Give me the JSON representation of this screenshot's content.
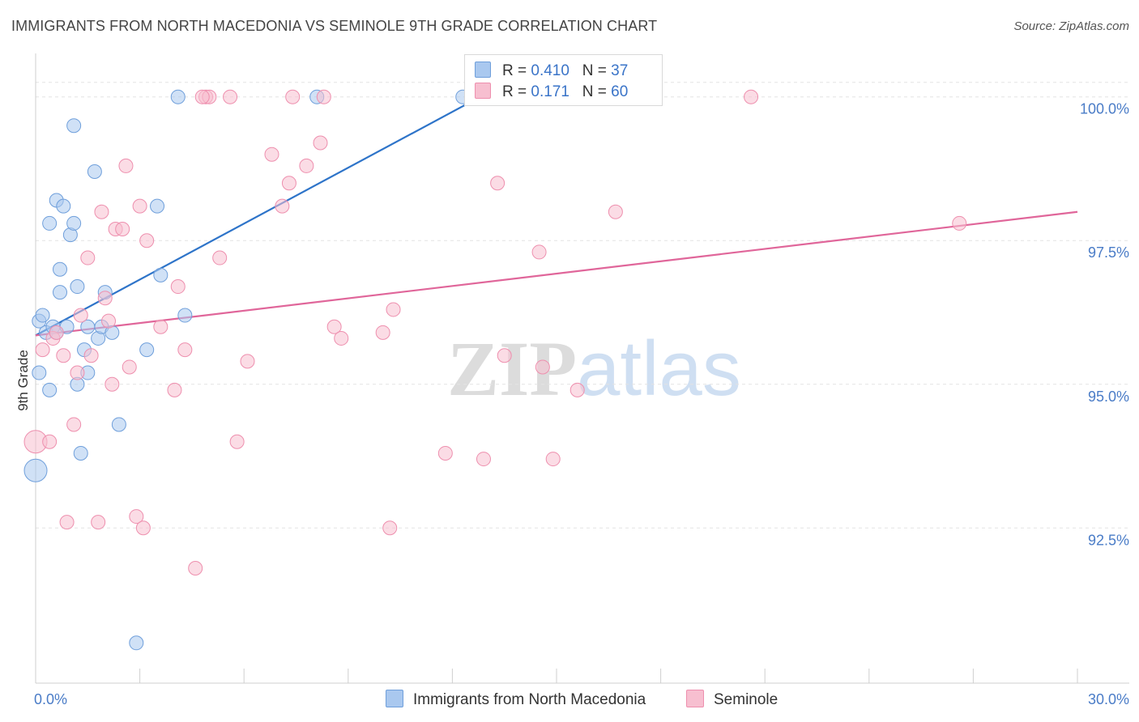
{
  "title": "IMMIGRANTS FROM NORTH MACEDONIA VS SEMINOLE 9TH GRADE CORRELATION CHART",
  "source": "Source: ZipAtlas.com",
  "watermark": {
    "zip": "ZIP",
    "atlas": "atlas"
  },
  "legend": {
    "rows": [
      {
        "r_label": "R =",
        "r_value": "0.410",
        "n_label": "N =",
        "n_value": "37",
        "color": "#a9c8ef"
      },
      {
        "r_label": "R =",
        "r_value": "0.171",
        "n_label": "N =",
        "n_value": "60",
        "color": "#f7bfd0"
      }
    ]
  },
  "chart_data": {
    "type": "scatter",
    "title": "IMMIGRANTS FROM NORTH MACEDONIA VS SEMINOLE 9TH GRADE CORRELATION CHART",
    "xlabel": "",
    "ylabel": "9th Grade",
    "xlim": [
      0,
      30
    ],
    "ylim": [
      89.8,
      100.7
    ],
    "x_tick_labels": [
      "0.0%",
      "30.0%"
    ],
    "y_ticks": [
      92.5,
      95.0,
      97.5,
      100.0
    ],
    "y_tick_labels": [
      "92.5%",
      "95.0%",
      "97.5%",
      "100.0%"
    ],
    "grid": true,
    "series": [
      {
        "name": "Immigrants from North Macedonia",
        "color": "#a9c8ef",
        "edge": "#6f9fdb",
        "trend": {
          "x": [
            0.0,
            12.8
          ],
          "y": [
            95.85,
            100.0
          ],
          "color": "#2e74c9"
        },
        "points": [
          {
            "x": 0.0,
            "y": 93.5,
            "big": true
          },
          {
            "x": 0.1,
            "y": 95.2
          },
          {
            "x": 0.1,
            "y": 96.1
          },
          {
            "x": 0.2,
            "y": 96.2
          },
          {
            "x": 0.3,
            "y": 95.9
          },
          {
            "x": 0.4,
            "y": 94.9
          },
          {
            "x": 0.4,
            "y": 97.8
          },
          {
            "x": 0.5,
            "y": 96.0
          },
          {
            "x": 0.6,
            "y": 98.2
          },
          {
            "x": 0.6,
            "y": 95.9
          },
          {
            "x": 0.7,
            "y": 97.0
          },
          {
            "x": 0.7,
            "y": 96.6
          },
          {
            "x": 0.8,
            "y": 98.1
          },
          {
            "x": 0.9,
            "y": 96.0
          },
          {
            "x": 1.0,
            "y": 97.6
          },
          {
            "x": 1.1,
            "y": 97.8
          },
          {
            "x": 1.1,
            "y": 99.5
          },
          {
            "x": 1.2,
            "y": 96.7
          },
          {
            "x": 1.2,
            "y": 95.0
          },
          {
            "x": 1.3,
            "y": 93.8
          },
          {
            "x": 1.4,
            "y": 95.6
          },
          {
            "x": 1.5,
            "y": 96.0
          },
          {
            "x": 1.5,
            "y": 95.2
          },
          {
            "x": 1.7,
            "y": 98.7
          },
          {
            "x": 1.8,
            "y": 95.8
          },
          {
            "x": 1.9,
            "y": 96.0
          },
          {
            "x": 2.0,
            "y": 96.6
          },
          {
            "x": 2.2,
            "y": 95.9
          },
          {
            "x": 2.4,
            "y": 94.3
          },
          {
            "x": 2.9,
            "y": 90.5
          },
          {
            "x": 3.2,
            "y": 95.6
          },
          {
            "x": 3.5,
            "y": 98.1
          },
          {
            "x": 3.6,
            "y": 96.9
          },
          {
            "x": 4.1,
            "y": 100.0
          },
          {
            "x": 4.3,
            "y": 96.2
          },
          {
            "x": 8.1,
            "y": 100.0
          },
          {
            "x": 12.3,
            "y": 100.0
          }
        ]
      },
      {
        "name": "Seminole",
        "color": "#f7bfd0",
        "edge": "#ee8fae",
        "trend": {
          "x": [
            0.0,
            30.0
          ],
          "y": [
            95.85,
            98.0
          ],
          "color": "#e0669a"
        },
        "points": [
          {
            "x": 0.0,
            "y": 94.0,
            "big": true
          },
          {
            "x": 0.2,
            "y": 95.6
          },
          {
            "x": 0.4,
            "y": 94.0
          },
          {
            "x": 0.5,
            "y": 95.8
          },
          {
            "x": 0.6,
            "y": 95.9
          },
          {
            "x": 0.8,
            "y": 95.5
          },
          {
            "x": 0.9,
            "y": 92.6
          },
          {
            "x": 1.1,
            "y": 94.3
          },
          {
            "x": 1.2,
            "y": 95.2
          },
          {
            "x": 1.3,
            "y": 96.2
          },
          {
            "x": 1.5,
            "y": 97.2
          },
          {
            "x": 1.6,
            "y": 95.5
          },
          {
            "x": 1.8,
            "y": 92.6
          },
          {
            "x": 1.9,
            "y": 98.0
          },
          {
            "x": 2.0,
            "y": 96.5
          },
          {
            "x": 2.1,
            "y": 96.1
          },
          {
            "x": 2.2,
            "y": 95.0
          },
          {
            "x": 2.3,
            "y": 97.7
          },
          {
            "x": 2.5,
            "y": 97.7
          },
          {
            "x": 2.6,
            "y": 98.8
          },
          {
            "x": 2.7,
            "y": 95.3
          },
          {
            "x": 2.9,
            "y": 92.7
          },
          {
            "x": 3.0,
            "y": 98.1
          },
          {
            "x": 3.1,
            "y": 92.5
          },
          {
            "x": 3.2,
            "y": 97.5
          },
          {
            "x": 3.6,
            "y": 96.0
          },
          {
            "x": 4.0,
            "y": 94.9
          },
          {
            "x": 4.1,
            "y": 96.7
          },
          {
            "x": 4.3,
            "y": 95.6
          },
          {
            "x": 4.6,
            "y": 91.8
          },
          {
            "x": 4.9,
            "y": 100.0
          },
          {
            "x": 5.0,
            "y": 100.0
          },
          {
            "x": 5.3,
            "y": 97.2
          },
          {
            "x": 5.6,
            "y": 100.0
          },
          {
            "x": 5.8,
            "y": 94.0
          },
          {
            "x": 6.1,
            "y": 95.4
          },
          {
            "x": 6.8,
            "y": 99.0
          },
          {
            "x": 7.1,
            "y": 98.1
          },
          {
            "x": 7.3,
            "y": 98.5
          },
          {
            "x": 7.4,
            "y": 100.0
          },
          {
            "x": 7.8,
            "y": 98.8
          },
          {
            "x": 8.2,
            "y": 99.2
          },
          {
            "x": 8.3,
            "y": 100.0
          },
          {
            "x": 8.6,
            "y": 96.0
          },
          {
            "x": 8.8,
            "y": 95.8
          },
          {
            "x": 10.0,
            "y": 95.9
          },
          {
            "x": 10.2,
            "y": 92.5
          },
          {
            "x": 10.3,
            "y": 96.3
          },
          {
            "x": 11.8,
            "y": 93.8
          },
          {
            "x": 12.9,
            "y": 93.7
          },
          {
            "x": 13.3,
            "y": 98.5
          },
          {
            "x": 13.5,
            "y": 95.5
          },
          {
            "x": 14.5,
            "y": 97.3
          },
          {
            "x": 14.6,
            "y": 95.3
          },
          {
            "x": 14.9,
            "y": 93.7
          },
          {
            "x": 15.6,
            "y": 94.9
          },
          {
            "x": 16.7,
            "y": 98.0
          },
          {
            "x": 20.6,
            "y": 100.0
          },
          {
            "x": 26.6,
            "y": 97.8
          },
          {
            "x": 4.8,
            "y": 100.0
          }
        ]
      }
    ]
  }
}
